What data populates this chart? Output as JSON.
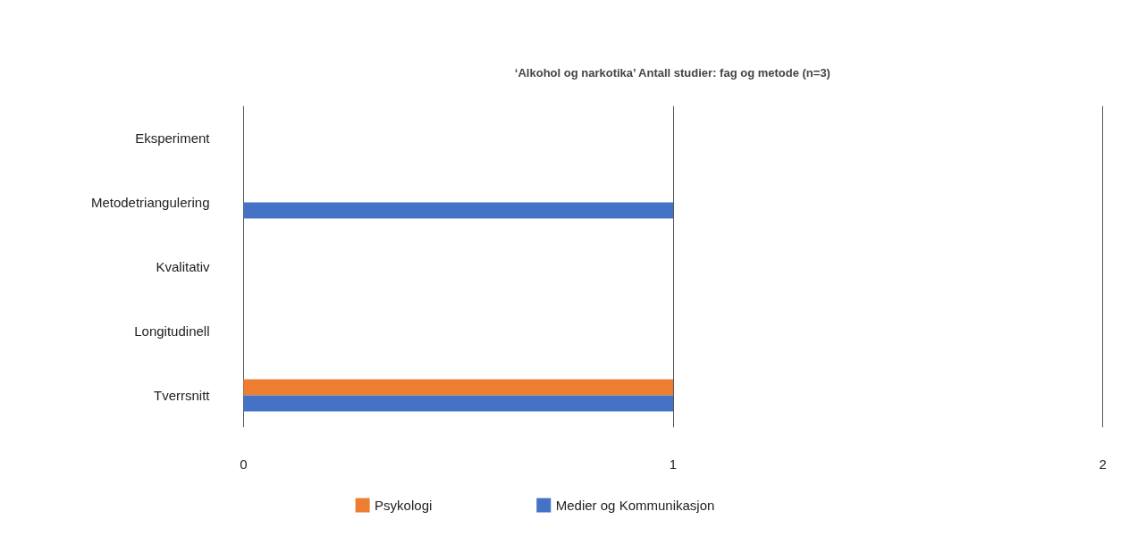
{
  "chart_data": {
    "type": "bar",
    "orientation": "horizontal",
    "title": "‘Alkohol og narkotika’ Antall studier: fag og metode (n=3)",
    "categories": [
      "Eksperiment",
      "Metodetriangulering",
      "Kvalitativ",
      "Longitudinell",
      "Tverrsnitt"
    ],
    "series": [
      {
        "name": "Psykologi",
        "color": "#ed7d31",
        "values": [
          0,
          0,
          0,
          0,
          1
        ]
      },
      {
        "name": "Medier og Kommunikasjon",
        "color": "#4472c4",
        "values": [
          0,
          1,
          0,
          0,
          1
        ]
      }
    ],
    "xlim": [
      0,
      2
    ],
    "xticks": [
      0,
      1,
      2
    ],
    "grid": "x",
    "legend": "bottom"
  }
}
